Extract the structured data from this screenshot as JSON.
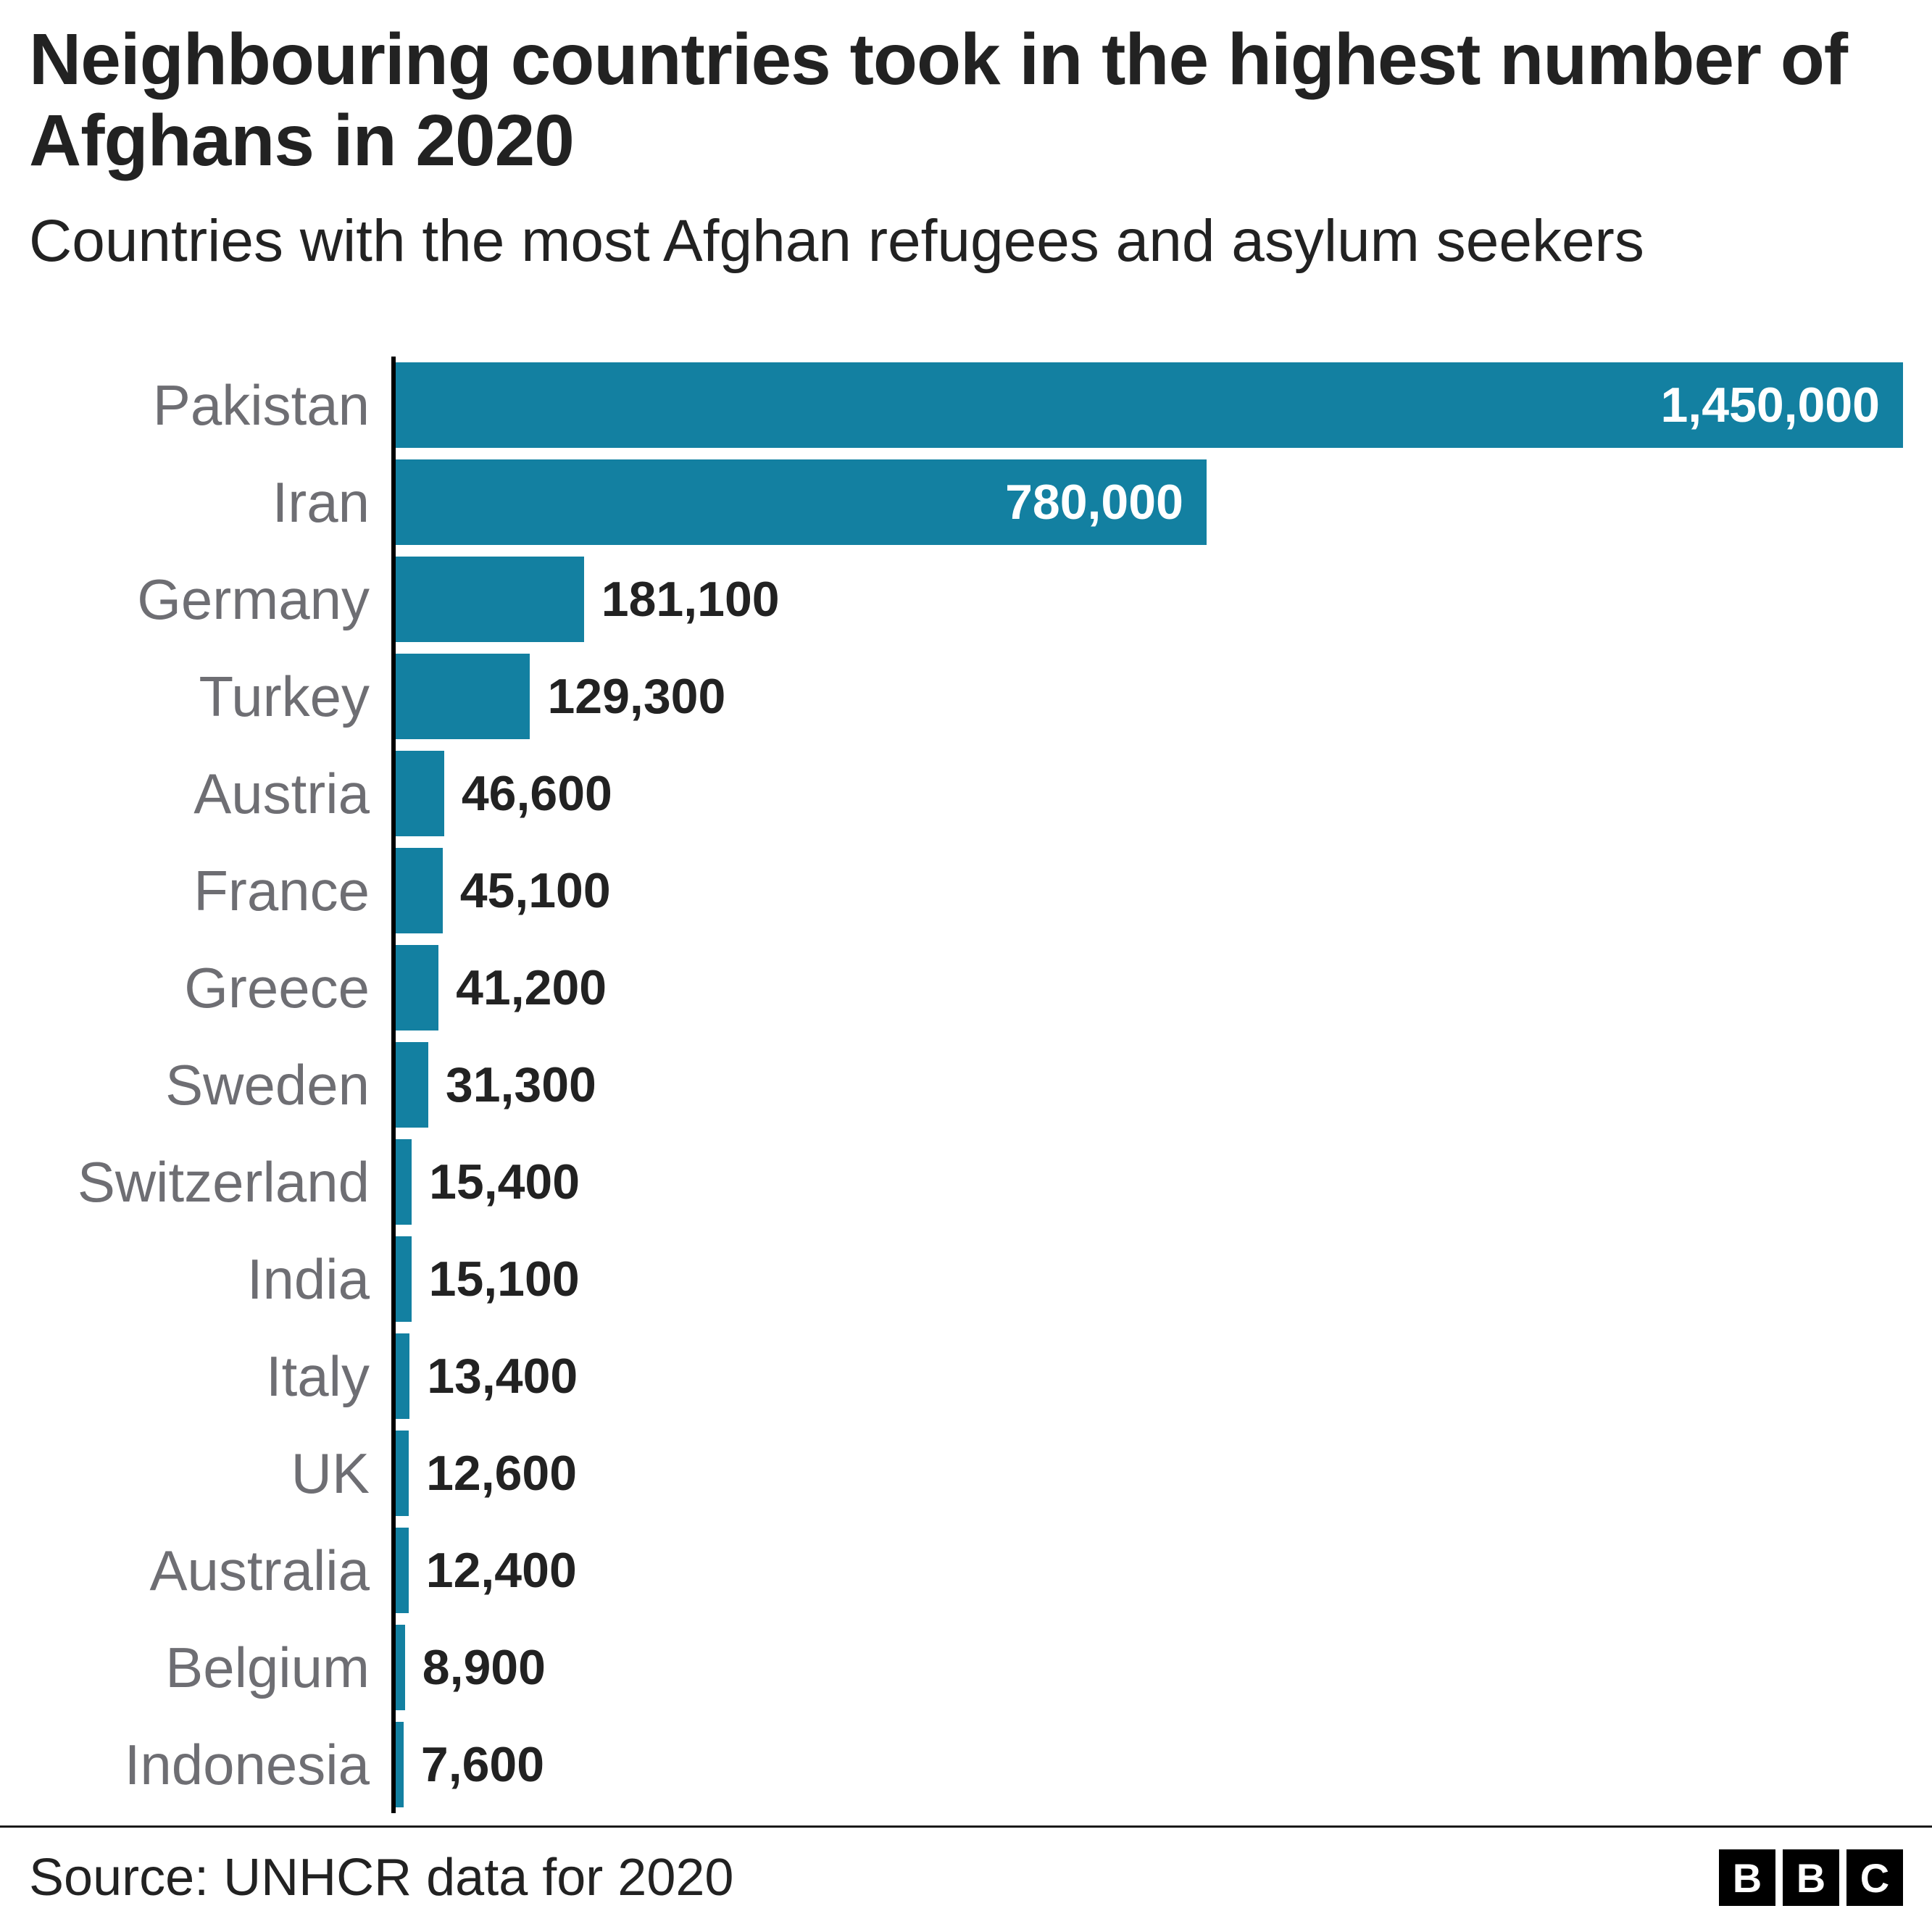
{
  "title": "Neighbouring countries took in the highest number of Afghans in 2020",
  "subtitle": "Countries with the most Afghan refugees and asylum seekers",
  "footer": {
    "source": "Source: UNHCR data for 2020",
    "logo_letters": [
      "B",
      "B",
      "C"
    ]
  },
  "colors": {
    "bar": "#1380A1",
    "country_label": "#6e6e73",
    "value_inside": "#ffffff",
    "value_outside": "#222222",
    "axis": "#000000",
    "title": "#222222"
  },
  "chart_data": {
    "type": "bar",
    "orientation": "horizontal",
    "title": "Neighbouring countries took in the highest number of Afghans in 2020",
    "subtitle": "Countries with the most Afghan refugees and asylum seekers",
    "source": "Source: UNHCR data for 2020",
    "xlabel": "",
    "ylabel": "",
    "xlim": [
      0,
      1450000
    ],
    "grid": false,
    "legend": "none",
    "categories": [
      "Pakistan",
      "Iran",
      "Germany",
      "Turkey",
      "Austria",
      "France",
      "Greece",
      "Sweden",
      "Switzerland",
      "India",
      "Italy",
      "UK",
      "Australia",
      "Belgium",
      "Indonesia"
    ],
    "values": [
      1450000,
      780000,
      181100,
      129300,
      46600,
      45100,
      41200,
      31300,
      15400,
      15100,
      13400,
      12600,
      12400,
      8900,
      7600
    ],
    "value_labels": [
      "1,450,000",
      "780,000",
      "181,100",
      "129,300",
      "46,600",
      "45,100",
      "41,200",
      "31,300",
      "15,400",
      "15,100",
      "13,400",
      "12,600",
      "12,400",
      "8,900",
      "7,600"
    ],
    "inside_label_threshold_fraction": 0.3
  }
}
